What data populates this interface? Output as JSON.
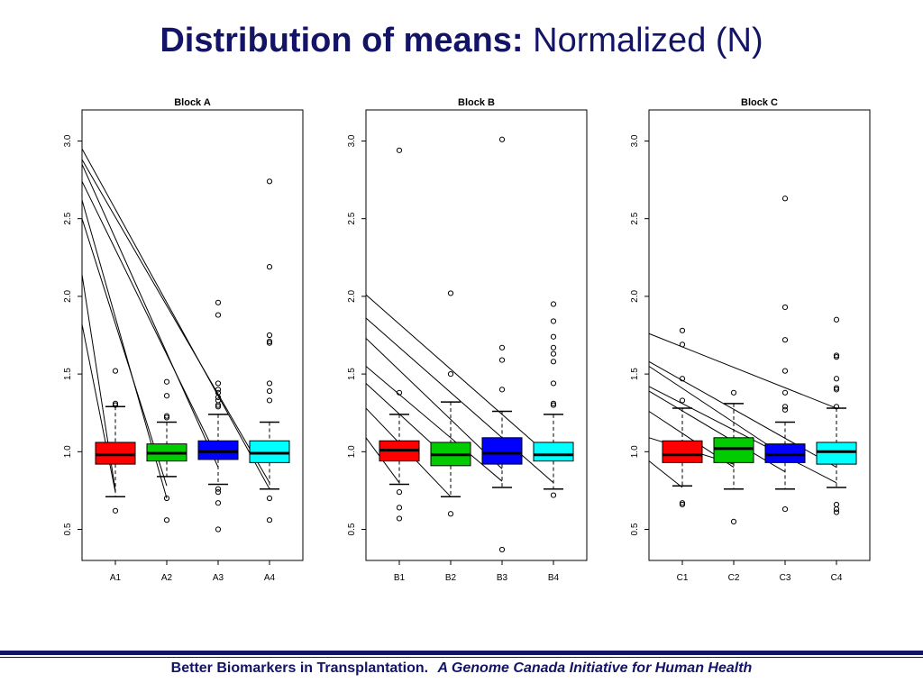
{
  "title": {
    "bold": "Distribution of means:",
    "normal": "Normalized (N)"
  },
  "footer": {
    "bold": "Better Biomarkers in Transplantation.",
    "italic": "A Genome Canada Initiative for Human Health"
  },
  "colors": {
    "title": "#141466",
    "box_fills": [
      "#ff0000",
      "#00cc00",
      "#0000ff",
      "#00ffff"
    ]
  },
  "chart_data": [
    {
      "type": "box",
      "title": "Block A",
      "ylim": [
        0.3,
        3.2
      ],
      "yticks": [
        "0.5",
        "1.0",
        "1.5",
        "2.0",
        "2.5",
        "3.0"
      ],
      "categories": [
        "A1",
        "A2",
        "A3",
        "A4"
      ],
      "boxes": [
        {
          "name": "A1",
          "fill": "#ff0000",
          "whisker_low": 0.71,
          "q1": 0.92,
          "median": 0.98,
          "q3": 1.06,
          "whisker_high": 1.29,
          "outliers": [
            1.52,
            1.31,
            1.3,
            0.62
          ]
        },
        {
          "name": "A2",
          "fill": "#00cc00",
          "whisker_low": 0.84,
          "q1": 0.94,
          "median": 0.99,
          "q3": 1.05,
          "whisker_high": 1.19,
          "outliers": [
            1.45,
            1.36,
            1.23,
            1.22,
            0.7,
            0.56
          ]
        },
        {
          "name": "A3",
          "fill": "#0000ff",
          "whisker_low": 0.79,
          "q1": 0.95,
          "median": 1.0,
          "q3": 1.07,
          "whisker_high": 1.24,
          "outliers": [
            1.96,
            1.88,
            1.44,
            1.4,
            1.38,
            1.35,
            1.33,
            1.3,
            1.29,
            0.76,
            0.74,
            0.67,
            0.5
          ]
        },
        {
          "name": "A4",
          "fill": "#00ffff",
          "whisker_low": 0.76,
          "q1": 0.93,
          "median": 0.99,
          "q3": 1.07,
          "whisker_high": 1.19,
          "outliers": [
            2.74,
            2.19,
            1.75,
            1.71,
            1.7,
            1.44,
            1.39,
            1.33,
            0.7,
            0.56
          ]
        }
      ],
      "lines": [
        {
          "from": 2.95,
          "to": 0.76
        },
        {
          "from": 2.88,
          "to": 0.8
        },
        {
          "from": 2.85,
          "to": 0.9
        },
        {
          "from": 2.74,
          "to": 0.95
        },
        {
          "from": 2.62,
          "to": 0.7
        },
        {
          "from": 2.5,
          "to": 0.78
        },
        {
          "from": 2.14,
          "to": 0.75
        },
        {
          "from": 1.82,
          "to": 0.74
        }
      ],
      "line_end_category": [
        "A4",
        "A4",
        "A3",
        "A3",
        "A2",
        "A2",
        "A1",
        "A1"
      ]
    },
    {
      "type": "box",
      "title": "Block B",
      "ylim": [
        0.3,
        3.2
      ],
      "yticks": [
        "0.5",
        "1.0",
        "1.5",
        "2.0",
        "2.5",
        "3.0"
      ],
      "categories": [
        "B1",
        "B2",
        "B3",
        "B4"
      ],
      "boxes": [
        {
          "name": "B1",
          "fill": "#ff0000",
          "whisker_low": 0.79,
          "q1": 0.94,
          "median": 1.01,
          "q3": 1.07,
          "whisker_high": 1.24,
          "outliers": [
            2.94,
            1.38,
            0.74,
            0.64,
            0.57
          ]
        },
        {
          "name": "B2",
          "fill": "#00cc00",
          "whisker_low": 0.71,
          "q1": 0.91,
          "median": 0.98,
          "q3": 1.06,
          "whisker_high": 1.32,
          "outliers": [
            2.02,
            1.5,
            0.6
          ]
        },
        {
          "name": "B3",
          "fill": "#0000ff",
          "whisker_low": 0.77,
          "q1": 0.92,
          "median": 0.99,
          "q3": 1.09,
          "whisker_high": 1.26,
          "outliers": [
            3.01,
            1.67,
            1.59,
            1.4,
            0.37
          ]
        },
        {
          "name": "B4",
          "fill": "#00ffff",
          "whisker_low": 0.76,
          "q1": 0.94,
          "median": 0.98,
          "q3": 1.06,
          "whisker_high": 1.24,
          "outliers": [
            1.95,
            1.84,
            1.74,
            1.67,
            1.63,
            1.58,
            1.44,
            1.31,
            1.3,
            0.72
          ]
        }
      ],
      "lines": [
        {
          "from": 2.01,
          "to": 0.95
        },
        {
          "from": 1.86,
          "to": 0.8
        },
        {
          "from": 1.73,
          "to": 0.89
        },
        {
          "from": 1.55,
          "to": 0.81
        },
        {
          "from": 1.44,
          "to": 0.94
        },
        {
          "from": 1.28,
          "to": 0.71
        },
        {
          "from": 1.09,
          "to": 0.8
        }
      ],
      "line_end_category": [
        "B4",
        "B4",
        "B3",
        "B3",
        "B2",
        "B2",
        "B1"
      ]
    },
    {
      "type": "box",
      "title": "Block C",
      "ylim": [
        0.3,
        3.2
      ],
      "yticks": [
        "0.5",
        "1.0",
        "1.5",
        "2.0",
        "2.5",
        "3.0"
      ],
      "categories": [
        "C1",
        "C2",
        "C3",
        "C4"
      ],
      "boxes": [
        {
          "name": "C1",
          "fill": "#ff0000",
          "whisker_low": 0.78,
          "q1": 0.93,
          "median": 0.98,
          "q3": 1.07,
          "whisker_high": 1.28,
          "outliers": [
            1.78,
            1.69,
            1.47,
            1.33,
            0.67,
            0.66
          ]
        },
        {
          "name": "C2",
          "fill": "#00cc00",
          "whisker_low": 0.76,
          "q1": 0.93,
          "median": 1.02,
          "q3": 1.09,
          "whisker_high": 1.31,
          "outliers": [
            1.38,
            0.55
          ]
        },
        {
          "name": "C3",
          "fill": "#0000ff",
          "whisker_low": 0.76,
          "q1": 0.93,
          "median": 0.98,
          "q3": 1.05,
          "whisker_high": 1.19,
          "outliers": [
            2.63,
            1.93,
            1.72,
            1.52,
            1.38,
            1.29,
            1.27,
            0.63
          ]
        },
        {
          "name": "C4",
          "fill": "#00ffff",
          "whisker_low": 0.77,
          "q1": 0.92,
          "median": 1.0,
          "q3": 1.06,
          "whisker_high": 1.28,
          "outliers": [
            1.85,
            1.62,
            1.61,
            1.47,
            1.41,
            1.4,
            1.29,
            0.66,
            0.63,
            0.61
          ]
        }
      ],
      "lines": [
        {
          "from": 1.76,
          "to": 1.28
        },
        {
          "from": 1.58,
          "to": 0.9
        },
        {
          "from": 1.55,
          "to": 0.97
        },
        {
          "from": 1.42,
          "to": 0.8
        },
        {
          "from": 1.39,
          "to": 0.87
        },
        {
          "from": 1.26,
          "to": 0.9
        },
        {
          "from": 1.09,
          "to": 0.92
        },
        {
          "from": 0.94,
          "to": 0.77
        }
      ],
      "line_end_category": [
        "C4",
        "C4",
        "C3",
        "C4",
        "C3",
        "C2",
        "C2",
        "C1"
      ]
    }
  ]
}
